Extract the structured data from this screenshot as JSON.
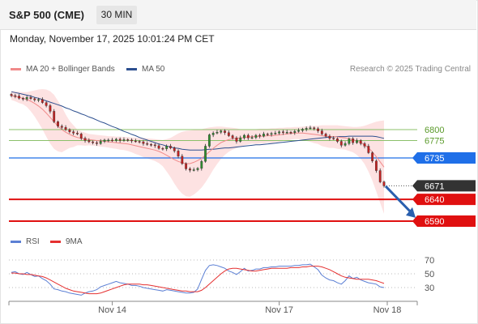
{
  "header": {
    "title": "S&P 500 (CME)",
    "timeframe": "30 MIN"
  },
  "timestamp": "Monday, November 17, 2025 10:01:24 PM CET",
  "credit": "Research © 2025 Trading Central",
  "legend": {
    "ma20": {
      "label": "MA 20 + Bollinger Bands",
      "color": "#f08a8a"
    },
    "ma50": {
      "label": "MA 50",
      "color": "#2c4f8f"
    },
    "rsi": {
      "label": "RSI",
      "color": "#5b7fd4"
    },
    "rsi_ma": {
      "label": "9MA",
      "color": "#e53030"
    }
  },
  "chart_data": [
    {
      "type": "candlestick",
      "x_ticks": [
        "Nov 14",
        "Nov 17",
        "Nov 18"
      ],
      "ylim": [
        6567,
        6730
      ],
      "levels": [
        {
          "label": "6800",
          "value": 6800,
          "kind": "resistance",
          "color": "#8cc06a"
        },
        {
          "label": "6775",
          "value": 6775,
          "kind": "resistance",
          "color": "#8cc06a"
        },
        {
          "label": "6735",
          "value": 6735,
          "kind": "pivot",
          "color": "#1f6fe8"
        },
        {
          "label": "6671",
          "value": 6671,
          "kind": "last-price",
          "color": "#333333"
        },
        {
          "label": "6640",
          "value": 6640,
          "kind": "support",
          "color": "#e01010"
        },
        {
          "label": "6590",
          "value": 6590,
          "kind": "support",
          "color": "#e01010"
        }
      ],
      "close": [
        6878,
        6877,
        6872,
        6870,
        6874,
        6871,
        6868,
        6869,
        6862,
        6855,
        6842,
        6818,
        6808,
        6805,
        6800,
        6795,
        6792,
        6790,
        6780,
        6775,
        6772,
        6770,
        6768,
        6773,
        6776,
        6776,
        6775,
        6778,
        6775,
        6777,
        6776,
        6774,
        6773,
        6772,
        6768,
        6766,
        6765,
        6763,
        6757,
        6756,
        6762,
        6758,
        6751,
        6739,
        6722,
        6710,
        6707,
        6708,
        6711,
        6727,
        6762,
        6788,
        6792,
        6794,
        6797,
        6793,
        6786,
        6781,
        6773,
        6781,
        6787,
        6781,
        6782,
        6787,
        6785,
        6790,
        6789,
        6791,
        6792,
        6795,
        6793,
        6794,
        6793,
        6796,
        6798,
        6801,
        6803,
        6804,
        6802,
        6797,
        6790,
        6785,
        6780,
        6779,
        6773,
        6764,
        6768,
        6779,
        6770,
        6775,
        6768,
        6762,
        6747,
        6728,
        6706,
        6680,
        6671
      ],
      "ma20": [
        6878,
        6876,
        6874,
        6872,
        6869,
        6865,
        6860,
        6854,
        6847,
        6838,
        6828,
        6818,
        6808,
        6800,
        6794,
        6789,
        6785,
        6782,
        6780,
        6778,
        6777,
        6776,
        6775,
        6774,
        6773,
        6772,
        6771,
        6770,
        6769,
        6768,
        6767,
        6765,
        6763,
        6761,
        6759,
        6757,
        6755,
        6753,
        6750,
        6746,
        6741,
        6736,
        6731,
        6727,
        6724,
        6722,
        6722,
        6725,
        6729,
        6734,
        6741,
        6749,
        6757,
        6764,
        6770,
        6774,
        6777,
        6779,
        6780,
        6781,
        6782,
        6783,
        6784,
        6784,
        6785,
        6785,
        6786,
        6786,
        6787,
        6788,
        6789,
        6790,
        6791,
        6792,
        6792,
        6792,
        6791,
        6790,
        6789,
        6788,
        6786,
        6785,
        6784,
        6784,
        6783,
        6782,
        6781,
        6779,
        6777,
        6774,
        6770,
        6765,
        6758,
        6749,
        6738,
        6726,
        6714
      ],
      "bb_upper": [
        6888,
        6888,
        6887,
        6886,
        6886,
        6888,
        6890,
        6892,
        6893,
        6892,
        6888,
        6880,
        6866,
        6852,
        6835,
        6820,
        6810,
        6800,
        6796,
        6793,
        6790,
        6789,
        6788,
        6787,
        6786,
        6785,
        6785,
        6784,
        6784,
        6783,
        6783,
        6782,
        6782,
        6781,
        6781,
        6780,
        6779,
        6778,
        6777,
        6776,
        6778,
        6781,
        6786,
        6791,
        6795,
        6797,
        6798,
        6799,
        6800,
        6801,
        6803,
        6805,
        6806,
        6807,
        6807,
        6806,
        6805,
        6804,
        6803,
        6801,
        6800,
        6800,
        6800,
        6801,
        6802,
        6802,
        6802,
        6803,
        6803,
        6804,
        6804,
        6805,
        6805,
        6806,
        6806,
        6807,
        6808,
        6808,
        6809,
        6809,
        6810,
        6810,
        6810,
        6810,
        6810,
        6809,
        6808,
        6807,
        6806,
        6806,
        6807,
        6809,
        6812,
        6815,
        6818,
        6820,
        6821
      ],
      "bb_lower": [
        6868,
        6865,
        6861,
        6858,
        6852,
        6842,
        6830,
        6816,
        6801,
        6784,
        6768,
        6756,
        6750,
        6748,
        6753,
        6758,
        6760,
        6764,
        6764,
        6763,
        6764,
        6763,
        6762,
        6761,
        6760,
        6759,
        6757,
        6756,
        6754,
        6753,
        6751,
        6748,
        6744,
        6741,
        6737,
        6734,
        6731,
        6728,
        6723,
        6716,
        6704,
        6691,
        6676,
        6663,
        6653,
        6647,
        6646,
        6651,
        6658,
        6667,
        6679,
        6693,
        6708,
        6721,
        6733,
        6742,
        6749,
        6754,
        6757,
        6761,
        6764,
        6766,
        6768,
        6767,
        6768,
        6768,
        6770,
        6769,
        6771,
        6772,
        6774,
        6775,
        6777,
        6778,
        6778,
        6777,
        6774,
        6772,
        6769,
        6767,
        6762,
        6760,
        6758,
        6758,
        6756,
        6755,
        6754,
        6751,
        6748,
        6742,
        6733,
        6721,
        6704,
        6683,
        6658,
        6632,
        6607
      ],
      "ma50": [
        6887,
        6885,
        6883,
        6881,
        6879,
        6877,
        6874,
        6872,
        6869,
        6866,
        6863,
        6860,
        6857,
        6854,
        6850,
        6847,
        6843,
        6840,
        6836,
        6833,
        6829,
        6826,
        6822,
        6818,
        6815,
        6811,
        6807,
        6804,
        6800,
        6796,
        6793,
        6789,
        6786,
        6782,
        6779,
        6776,
        6773,
        6770,
        6767,
        6765,
        6762,
        6760,
        6758,
        6757,
        6755,
        6754,
        6753,
        6753,
        6753,
        6753,
        6754,
        6755,
        6755,
        6756,
        6757,
        6758,
        6758,
        6759,
        6760,
        6761,
        6762,
        6763,
        6764,
        6765,
        6765,
        6766,
        6767,
        6768,
        6769,
        6770,
        6771,
        6772,
        6773,
        6774,
        6775,
        6776,
        6777,
        6778,
        6779,
        6780,
        6781,
        6782,
        6783,
        6783,
        6784,
        6784,
        6784,
        6785,
        6785,
        6785,
        6785,
        6785,
        6785,
        6785,
        6784,
        6782,
        6780
      ]
    },
    {
      "type": "line",
      "name": "RSI",
      "y_ticks": [
        "70",
        "50",
        "30"
      ],
      "ylim": [
        10,
        80
      ],
      "series": [
        {
          "name": "RSI",
          "values": [
            52,
            53,
            50,
            49,
            52,
            49,
            46,
            47,
            43,
            40,
            35,
            28,
            27,
            25,
            24,
            22,
            21,
            20,
            19,
            22,
            24,
            25,
            27,
            31,
            33,
            35,
            37,
            39,
            37,
            36,
            35,
            33,
            33,
            32,
            30,
            29,
            28,
            27,
            26,
            25,
            27,
            26,
            25,
            24,
            23,
            22,
            22,
            23,
            28,
            42,
            55,
            62,
            63,
            62,
            60,
            58,
            54,
            52,
            49,
            53,
            58,
            54,
            55,
            57,
            57,
            59,
            59,
            60,
            60,
            61,
            61,
            61,
            61,
            62,
            62,
            63,
            63,
            64,
            60,
            56,
            48,
            44,
            41,
            40,
            37,
            35,
            40,
            47,
            43,
            45,
            41,
            39,
            37,
            36,
            35,
            31,
            30
          ]
        },
        {
          "name": "9MA",
          "values": [
            51,
            51,
            50,
            50,
            49,
            49,
            48,
            47,
            46,
            44,
            41,
            38,
            35,
            32,
            29,
            27,
            25,
            24,
            23,
            22,
            21,
            21,
            21,
            22,
            24,
            26,
            28,
            30,
            32,
            34,
            35,
            35,
            35,
            35,
            34,
            34,
            33,
            32,
            31,
            30,
            29,
            28,
            27,
            26,
            25,
            25,
            24,
            24,
            24,
            26,
            30,
            35,
            40,
            45,
            50,
            54,
            57,
            58,
            58,
            57,
            56,
            55,
            54,
            54,
            55,
            56,
            57,
            58,
            58,
            58,
            58,
            58,
            59,
            59,
            59,
            60,
            60,
            61,
            61,
            61,
            60,
            58,
            56,
            53,
            50,
            47,
            45,
            44,
            43,
            42,
            42,
            42,
            42,
            41,
            40,
            38,
            36
          ]
        }
      ]
    }
  ]
}
